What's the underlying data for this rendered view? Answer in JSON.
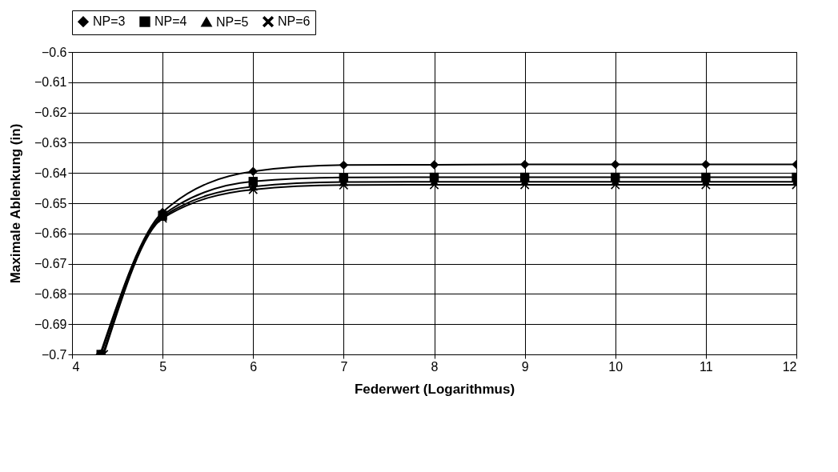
{
  "chart_data": {
    "type": "line",
    "xlabel": "Federwert (Logarithmus)",
    "ylabel": "Maximale Ablenkung (in)",
    "xlim": [
      4,
      12
    ],
    "xticks": [
      4,
      5,
      6,
      7,
      8,
      9,
      10,
      11,
      12
    ],
    "ylim": [
      -0.7,
      -0.6
    ],
    "yticks": [
      -0.7,
      -0.69,
      -0.68,
      -0.67,
      -0.66,
      -0.65,
      -0.64,
      -0.63,
      -0.62,
      -0.61,
      -0.6
    ],
    "grid": true,
    "legend": "top",
    "line_style": "solid",
    "series": [
      {
        "name": "NP=3",
        "color": "#000000",
        "marker": "diamond",
        "x": [
          4.31,
          5,
          6,
          7,
          8,
          9,
          10,
          11,
          12
        ],
        "values": [
          -0.7,
          -0.653,
          -0.6395,
          -0.6374,
          -0.6373,
          -0.6372,
          -0.6372,
          -0.6372,
          -0.6372
        ]
      },
      {
        "name": "NP=4",
        "color": "#000000",
        "marker": "square",
        "x": [
          4.32,
          5,
          6,
          7,
          8,
          9,
          10,
          11,
          12
        ],
        "values": [
          -0.7,
          -0.654,
          -0.6428,
          -0.6415,
          -0.6414,
          -0.6414,
          -0.6414,
          -0.6414,
          -0.6414
        ]
      },
      {
        "name": "NP=5",
        "color": "#000000",
        "marker": "triangle",
        "x": [
          4.34,
          5,
          6,
          7,
          8,
          9,
          10,
          11,
          12
        ],
        "values": [
          -0.7,
          -0.6545,
          -0.6445,
          -0.643,
          -0.6429,
          -0.6429,
          -0.6429,
          -0.6429,
          -0.6429
        ]
      },
      {
        "name": "NP=6",
        "color": "#000000",
        "marker": "cross",
        "x": [
          4.35,
          5,
          6,
          7,
          8,
          9,
          10,
          11,
          12
        ],
        "values": [
          -0.7,
          -0.655,
          -0.6455,
          -0.644,
          -0.6439,
          -0.6439,
          -0.6439,
          -0.6439,
          -0.6439
        ]
      }
    ]
  }
}
